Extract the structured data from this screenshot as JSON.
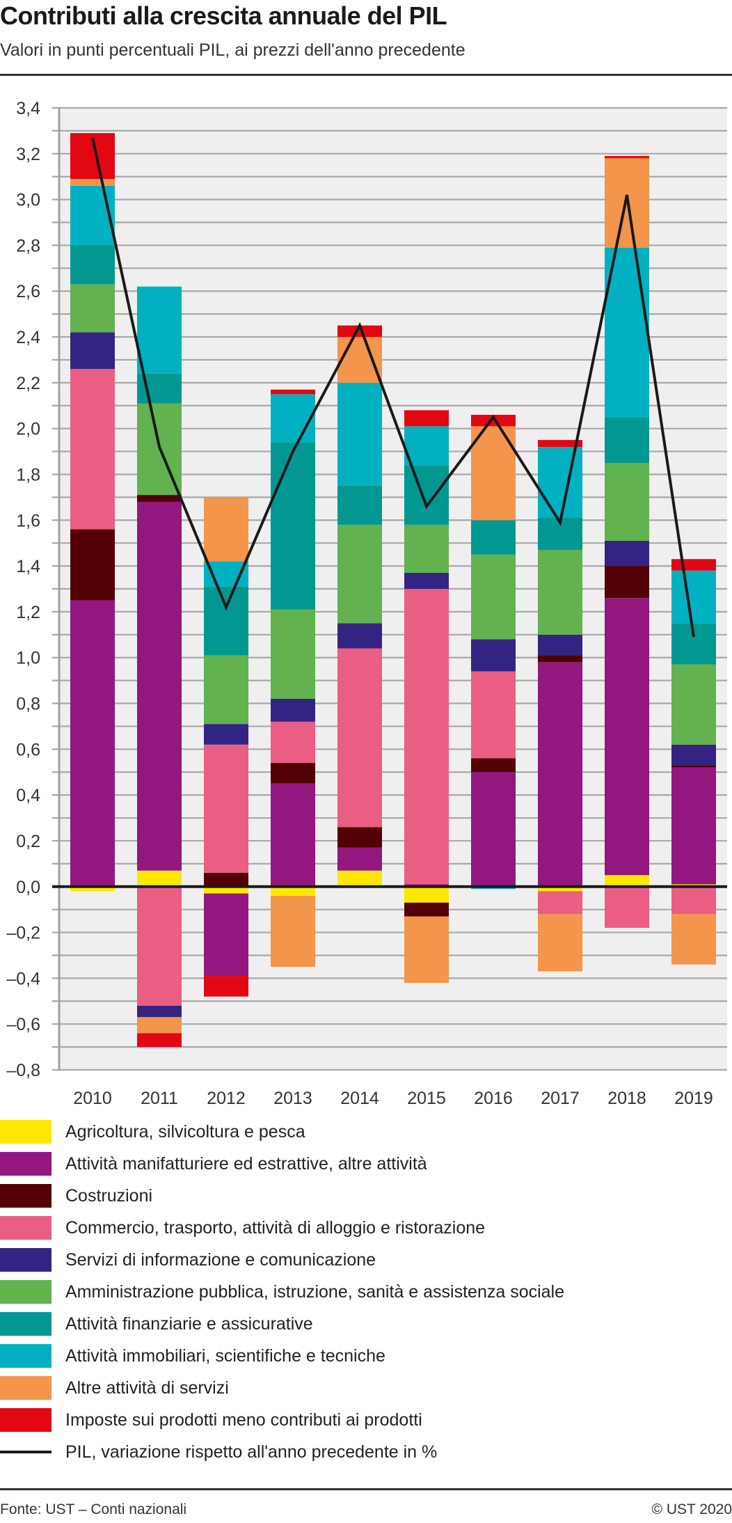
{
  "header": {
    "title": "Contributi alla crescita annuale del PIL",
    "subtitle": "Valori in punti percentuali PIL, ai prezzi dell'anno precedente"
  },
  "footer": {
    "source": "Fonte: UST – Conti nazionali",
    "copyright": "© UST 2020"
  },
  "chart_data": {
    "type": "bar",
    "stacked": true,
    "title": "Contributi alla crescita annuale del PIL",
    "subtitle": "Valori in punti percentuali PIL, ai prezzi dell'anno precedente",
    "xlabel": "",
    "ylabel": "",
    "ylim": [
      -0.8,
      3.4
    ],
    "yticks": [
      -0.8,
      -0.6,
      -0.4,
      -0.2,
      0.0,
      0.2,
      0.4,
      0.6,
      0.8,
      1.0,
      1.2,
      1.4,
      1.6,
      1.8,
      2.0,
      2.2,
      2.4,
      2.6,
      2.8,
      3.0,
      3.2,
      3.4
    ],
    "ytick_labels": [
      "–0,8",
      "–0,6",
      "–0,4",
      "–0,2",
      "0,0",
      "0,2",
      "0,4",
      "0,6",
      "0,8",
      "1,0",
      "1,2",
      "1,4",
      "1,6",
      "1,8",
      "2,0",
      "2,2",
      "2,4",
      "2,6",
      "2,8",
      "3,0",
      "3,2",
      "3,4"
    ],
    "minor_grid_step": 0.1,
    "grid": true,
    "legend_position": "bottom",
    "categories": [
      "2010",
      "2011",
      "2012",
      "2013",
      "2014",
      "2015",
      "2016",
      "2017",
      "2018",
      "2019"
    ],
    "series": [
      {
        "name": "Agricoltura, silvicoltura e pesca",
        "color": "#ffe800",
        "values": [
          -0.02,
          0.07,
          -0.03,
          -0.04,
          0.07,
          -0.07,
          0.0,
          -0.02,
          0.05,
          0.01
        ]
      },
      {
        "name": "Attività manifatturiere ed estrattive, altre attività",
        "color": "#93177e",
        "values": [
          1.25,
          1.61,
          -0.36,
          0.45,
          0.1,
          0.01,
          0.5,
          0.98,
          1.21,
          0.51
        ]
      },
      {
        "name": "Costruzioni",
        "color": "#520003",
        "values": [
          0.31,
          0.03,
          0.06,
          0.09,
          0.09,
          -0.06,
          0.06,
          0.03,
          0.14,
          0.01
        ]
      },
      {
        "name": "Commercio, trasporto, attività di alloggio e ristorazione",
        "color": "#ea5e83",
        "values": [
          0.7,
          -0.52,
          0.56,
          0.18,
          0.78,
          1.29,
          0.38,
          -0.1,
          -0.18,
          -0.12
        ]
      },
      {
        "name": "Servizi di informazione e comunicazione",
        "color": "#332483",
        "values": [
          0.16,
          -0.05,
          0.09,
          0.1,
          0.11,
          0.07,
          0.14,
          0.09,
          0.11,
          0.09
        ]
      },
      {
        "name": "Amministrazione pubblica, istruzione, sanità e assistenza sociale",
        "color": "#62b24f",
        "values": [
          0.21,
          0.4,
          0.3,
          0.39,
          0.43,
          0.21,
          0.37,
          0.37,
          0.34,
          0.35
        ]
      },
      {
        "name": "Attività finanziarie e assicurative",
        "color": "#029891",
        "values": [
          0.17,
          0.13,
          0.3,
          0.73,
          0.17,
          0.26,
          0.15,
          0.14,
          0.2,
          0.18
        ]
      },
      {
        "name": "Attività immobiliari, scientifiche e tecniche",
        "color": "#01b1c1",
        "values": [
          0.26,
          0.38,
          0.11,
          0.21,
          0.45,
          0.17,
          -0.01,
          0.31,
          0.74,
          0.23
        ]
      },
      {
        "name": "Altre attività di servizi",
        "color": "#f3954a",
        "values": [
          0.03,
          -0.07,
          0.28,
          -0.31,
          0.2,
          -0.29,
          0.41,
          -0.25,
          0.39,
          -0.22
        ]
      },
      {
        "name": "Imposte sui prodotti meno contributi ai prodotti",
        "color": "#e30613",
        "values": [
          0.2,
          -0.06,
          -0.09,
          0.02,
          0.05,
          0.07,
          0.05,
          0.03,
          0.01,
          0.05
        ]
      }
    ],
    "line": {
      "name": "PIL, variazione rispetto all'anno precedente in %",
      "color": "#1a1a1a",
      "values": [
        3.27,
        1.92,
        1.22,
        1.9,
        2.45,
        1.66,
        2.05,
        1.59,
        3.02,
        1.09
      ]
    }
  }
}
